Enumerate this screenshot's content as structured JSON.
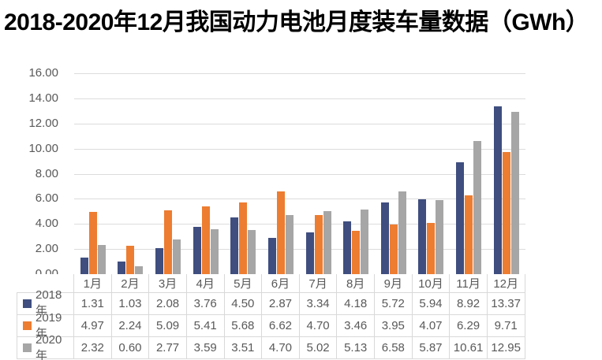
{
  "title": "2018-2020年12月我国动力电池月度装车量数据（GWh）",
  "chart_data": {
    "type": "bar",
    "title": "2018-2020年12月我国动力电池月度装车量数据（GWh）",
    "categories": [
      "1月",
      "2月",
      "3月",
      "4月",
      "5月",
      "6月",
      "7月",
      "8月",
      "9月",
      "10月",
      "11月",
      "12月"
    ],
    "series": [
      {
        "name": "2018年",
        "color": "#3F4E7F",
        "values": [
          1.31,
          1.03,
          2.08,
          3.76,
          4.5,
          2.87,
          3.34,
          4.18,
          5.72,
          5.94,
          8.92,
          13.37
        ]
      },
      {
        "name": "2019年",
        "color": "#ED7D31",
        "values": [
          4.97,
          2.24,
          5.09,
          5.41,
          5.68,
          6.62,
          4.7,
          3.46,
          3.95,
          4.07,
          6.29,
          9.71
        ]
      },
      {
        "name": "2020年",
        "color": "#A6A6A6",
        "values": [
          2.32,
          0.6,
          2.77,
          3.59,
          3.51,
          4.7,
          5.02,
          5.13,
          6.58,
          5.87,
          10.61,
          12.95
        ]
      }
    ],
    "xlabel": "",
    "ylabel": "",
    "ylim": [
      0,
      16
    ],
    "ytick_step": 2,
    "ytick_labels": [
      "0.00",
      "2.00",
      "4.00",
      "6.00",
      "8.00",
      "10.00",
      "12.00",
      "14.00",
      "16.00"
    ],
    "grid": true,
    "legend_position": "data-table-left",
    "data_table": true
  },
  "colors": {
    "title_text": "#000000",
    "axis_text": "#595959",
    "gridline": "#DCDCDC",
    "axis_line": "#BFBFBF",
    "table_border": "#D9D9D9",
    "background": "#FFFFFF"
  }
}
